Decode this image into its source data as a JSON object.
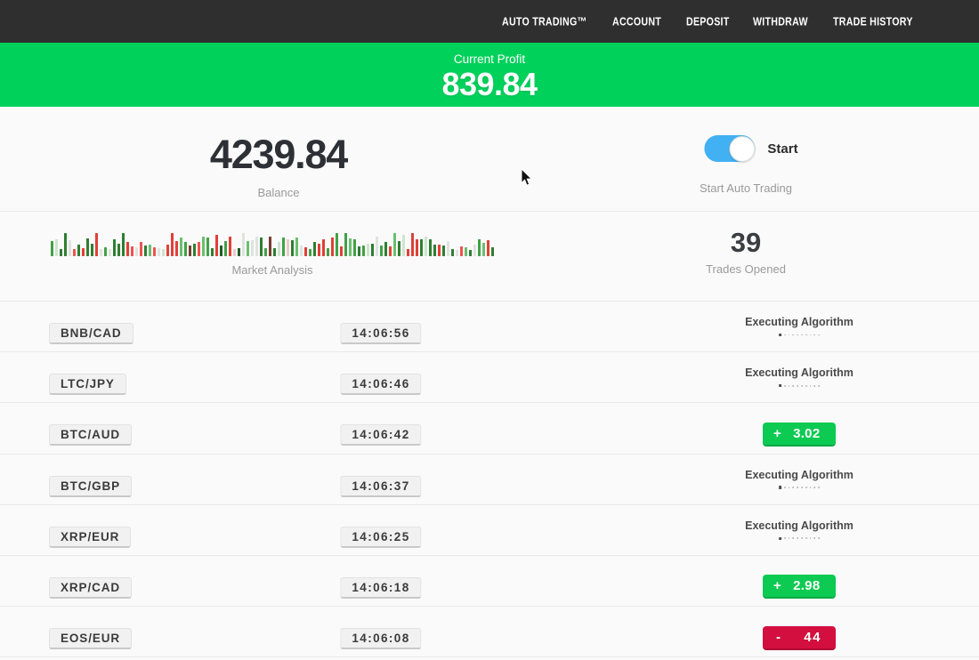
{
  "nav": {
    "items": [
      {
        "id": "auto-trading",
        "label": "AUTO TRADING™"
      },
      {
        "id": "account",
        "label": "ACCOUNT"
      },
      {
        "id": "deposit",
        "label": "DEPOSIT"
      },
      {
        "id": "withdraw",
        "label": "WITHDRAW"
      },
      {
        "id": "trade-history",
        "label": "TRADE HISTORY"
      }
    ]
  },
  "banner": {
    "label": "Current Profit",
    "value": "839.84",
    "background": "#00d15b"
  },
  "account": {
    "balance": "4239.84",
    "balance_label": "Balance",
    "toggle_state": "on",
    "toggle_label": "Start",
    "toggle_caption": "Start Auto Trading",
    "trades_opened": "39",
    "trades_opened_label": "Trades Opened"
  },
  "chart_data": {
    "type": "bar",
    "title": "Market Analysis",
    "description": "decorative mini bar strip of recent market ticks, bottom-aligned, bar width 3px, gap 2px, heights in px",
    "palette": {
      "g1": "#2f7d33",
      "g2": "#42a047",
      "g3": "#6abf6e",
      "g4": "#1d5e24",
      "r1": "#e04038",
      "r2": "#ef5350",
      "d1": "#7a3b32",
      "p1": "#dfe3df",
      "p2": "#cde5cd",
      "p3": "#eecaca"
    },
    "bars": [
      {
        "h": 17,
        "c": "g2"
      },
      {
        "h": 19,
        "c": "p2"
      },
      {
        "h": 8,
        "c": "g1"
      },
      {
        "h": 26,
        "c": "g1"
      },
      {
        "h": 18,
        "c": "p1"
      },
      {
        "h": 8,
        "c": "r2"
      },
      {
        "h": 13,
        "c": "g1"
      },
      {
        "h": 9,
        "c": "r1"
      },
      {
        "h": 20,
        "c": "g1"
      },
      {
        "h": 14,
        "c": "g1"
      },
      {
        "h": 26,
        "c": "r1"
      },
      {
        "h": 8,
        "c": "p1"
      },
      {
        "h": 10,
        "c": "g2"
      },
      {
        "h": 8,
        "c": "p1"
      },
      {
        "h": 19,
        "c": "g1"
      },
      {
        "h": 14,
        "c": "g1"
      },
      {
        "h": 26,
        "c": "g1"
      },
      {
        "h": 16,
        "c": "r1"
      },
      {
        "h": 11,
        "c": "r2"
      },
      {
        "h": 10,
        "c": "p1"
      },
      {
        "h": 16,
        "c": "r2"
      },
      {
        "h": 12,
        "c": "g1"
      },
      {
        "h": 13,
        "c": "g3"
      },
      {
        "h": 10,
        "c": "r2"
      },
      {
        "h": 9,
        "c": "p1"
      },
      {
        "h": 8,
        "c": "p2"
      },
      {
        "h": 13,
        "c": "r1"
      },
      {
        "h": 26,
        "c": "r1"
      },
      {
        "h": 17,
        "c": "r1"
      },
      {
        "h": 21,
        "c": "g3"
      },
      {
        "h": 16,
        "c": "g2"
      },
      {
        "h": 12,
        "c": "d1"
      },
      {
        "h": 14,
        "c": "g1"
      },
      {
        "h": 16,
        "c": "r2"
      },
      {
        "h": 22,
        "c": "g3"
      },
      {
        "h": 21,
        "c": "g2"
      },
      {
        "h": 9,
        "c": "g1"
      },
      {
        "h": 24,
        "c": "r1"
      },
      {
        "h": 12,
        "c": "g4"
      },
      {
        "h": 17,
        "c": "g2"
      },
      {
        "h": 22,
        "c": "r1"
      },
      {
        "h": 8,
        "c": "p3"
      },
      {
        "h": 9,
        "c": "g4"
      },
      {
        "h": 26,
        "c": "p1"
      },
      {
        "h": 17,
        "c": "g3"
      },
      {
        "h": 18,
        "c": "p1"
      },
      {
        "h": 22,
        "c": "p1"
      },
      {
        "h": 21,
        "c": "g1"
      },
      {
        "h": 9,
        "c": "g2"
      },
      {
        "h": 22,
        "c": "d1"
      },
      {
        "h": 9,
        "c": "g1"
      },
      {
        "h": 16,
        "c": "p2"
      },
      {
        "h": 21,
        "c": "g2"
      },
      {
        "h": 19,
        "c": "p3"
      },
      {
        "h": 18,
        "c": "g1"
      },
      {
        "h": 21,
        "c": "g3"
      },
      {
        "h": 12,
        "c": "p1"
      },
      {
        "h": 10,
        "c": "r1"
      },
      {
        "h": 8,
        "c": "g2"
      },
      {
        "h": 16,
        "c": "g1"
      },
      {
        "h": 14,
        "c": "r1"
      },
      {
        "h": 19,
        "c": "r1"
      },
      {
        "h": 9,
        "c": "g2"
      },
      {
        "h": 21,
        "c": "r1"
      },
      {
        "h": 26,
        "c": "g2"
      },
      {
        "h": 11,
        "c": "r1"
      },
      {
        "h": 26,
        "c": "g2"
      },
      {
        "h": 20,
        "c": "g3"
      },
      {
        "h": 19,
        "c": "g2"
      },
      {
        "h": 11,
        "c": "g1"
      },
      {
        "h": 12,
        "c": "g2"
      },
      {
        "h": 14,
        "c": "p2"
      },
      {
        "h": 14,
        "c": "g1"
      },
      {
        "h": 22,
        "c": "p1"
      },
      {
        "h": 12,
        "c": "g2"
      },
      {
        "h": 16,
        "c": "g1"
      },
      {
        "h": 11,
        "c": "r1"
      },
      {
        "h": 26,
        "c": "g3"
      },
      {
        "h": 17,
        "c": "g1"
      },
      {
        "h": 24,
        "c": "p2"
      },
      {
        "h": 8,
        "c": "r1"
      },
      {
        "h": 26,
        "c": "r1"
      },
      {
        "h": 19,
        "c": "r1"
      },
      {
        "h": 19,
        "c": "g1"
      },
      {
        "h": 22,
        "c": "p2"
      },
      {
        "h": 19,
        "c": "g1"
      },
      {
        "h": 13,
        "c": "g1"
      },
      {
        "h": 13,
        "c": "r1"
      },
      {
        "h": 12,
        "c": "g1"
      },
      {
        "h": 17,
        "c": "p1"
      },
      {
        "h": 8,
        "c": "g1"
      },
      {
        "h": 7,
        "c": "p1"
      },
      {
        "h": 11,
        "c": "r2"
      },
      {
        "h": 10,
        "c": "g3"
      },
      {
        "h": 7,
        "c": "g1"
      },
      {
        "h": 13,
        "c": "p1"
      },
      {
        "h": 19,
        "c": "g2"
      },
      {
        "h": 15,
        "c": "g3"
      },
      {
        "h": 18,
        "c": "r1"
      },
      {
        "h": 10,
        "c": "g1"
      }
    ]
  },
  "table": {
    "executing_label": "Executing Algorithm",
    "rows": [
      {
        "pair": "BNB/CAD",
        "time": "14:06:56",
        "status": "executing"
      },
      {
        "pair": "LTC/JPY",
        "time": "14:06:46",
        "status": "executing"
      },
      {
        "pair": "BTC/AUD",
        "time": "14:06:42",
        "status": "profit",
        "sign": "+",
        "amount": "3.02"
      },
      {
        "pair": "BTC/GBP",
        "time": "14:06:37",
        "status": "executing"
      },
      {
        "pair": "XRP/EUR",
        "time": "14:06:25",
        "status": "executing"
      },
      {
        "pair": "XRP/CAD",
        "time": "14:06:18",
        "status": "profit",
        "sign": "+",
        "amount": "2.98"
      },
      {
        "pair": "EOS/EUR",
        "time": "14:06:08",
        "status": "loss",
        "sign": "-",
        "amount": "44"
      }
    ]
  },
  "colors": {
    "navbar_bg": "#2f2f2f",
    "banner_green": "#00d15b",
    "profit_green": "#0cca52",
    "loss_red": "#d20f3f",
    "toggle_blue": "#41b1f3"
  }
}
